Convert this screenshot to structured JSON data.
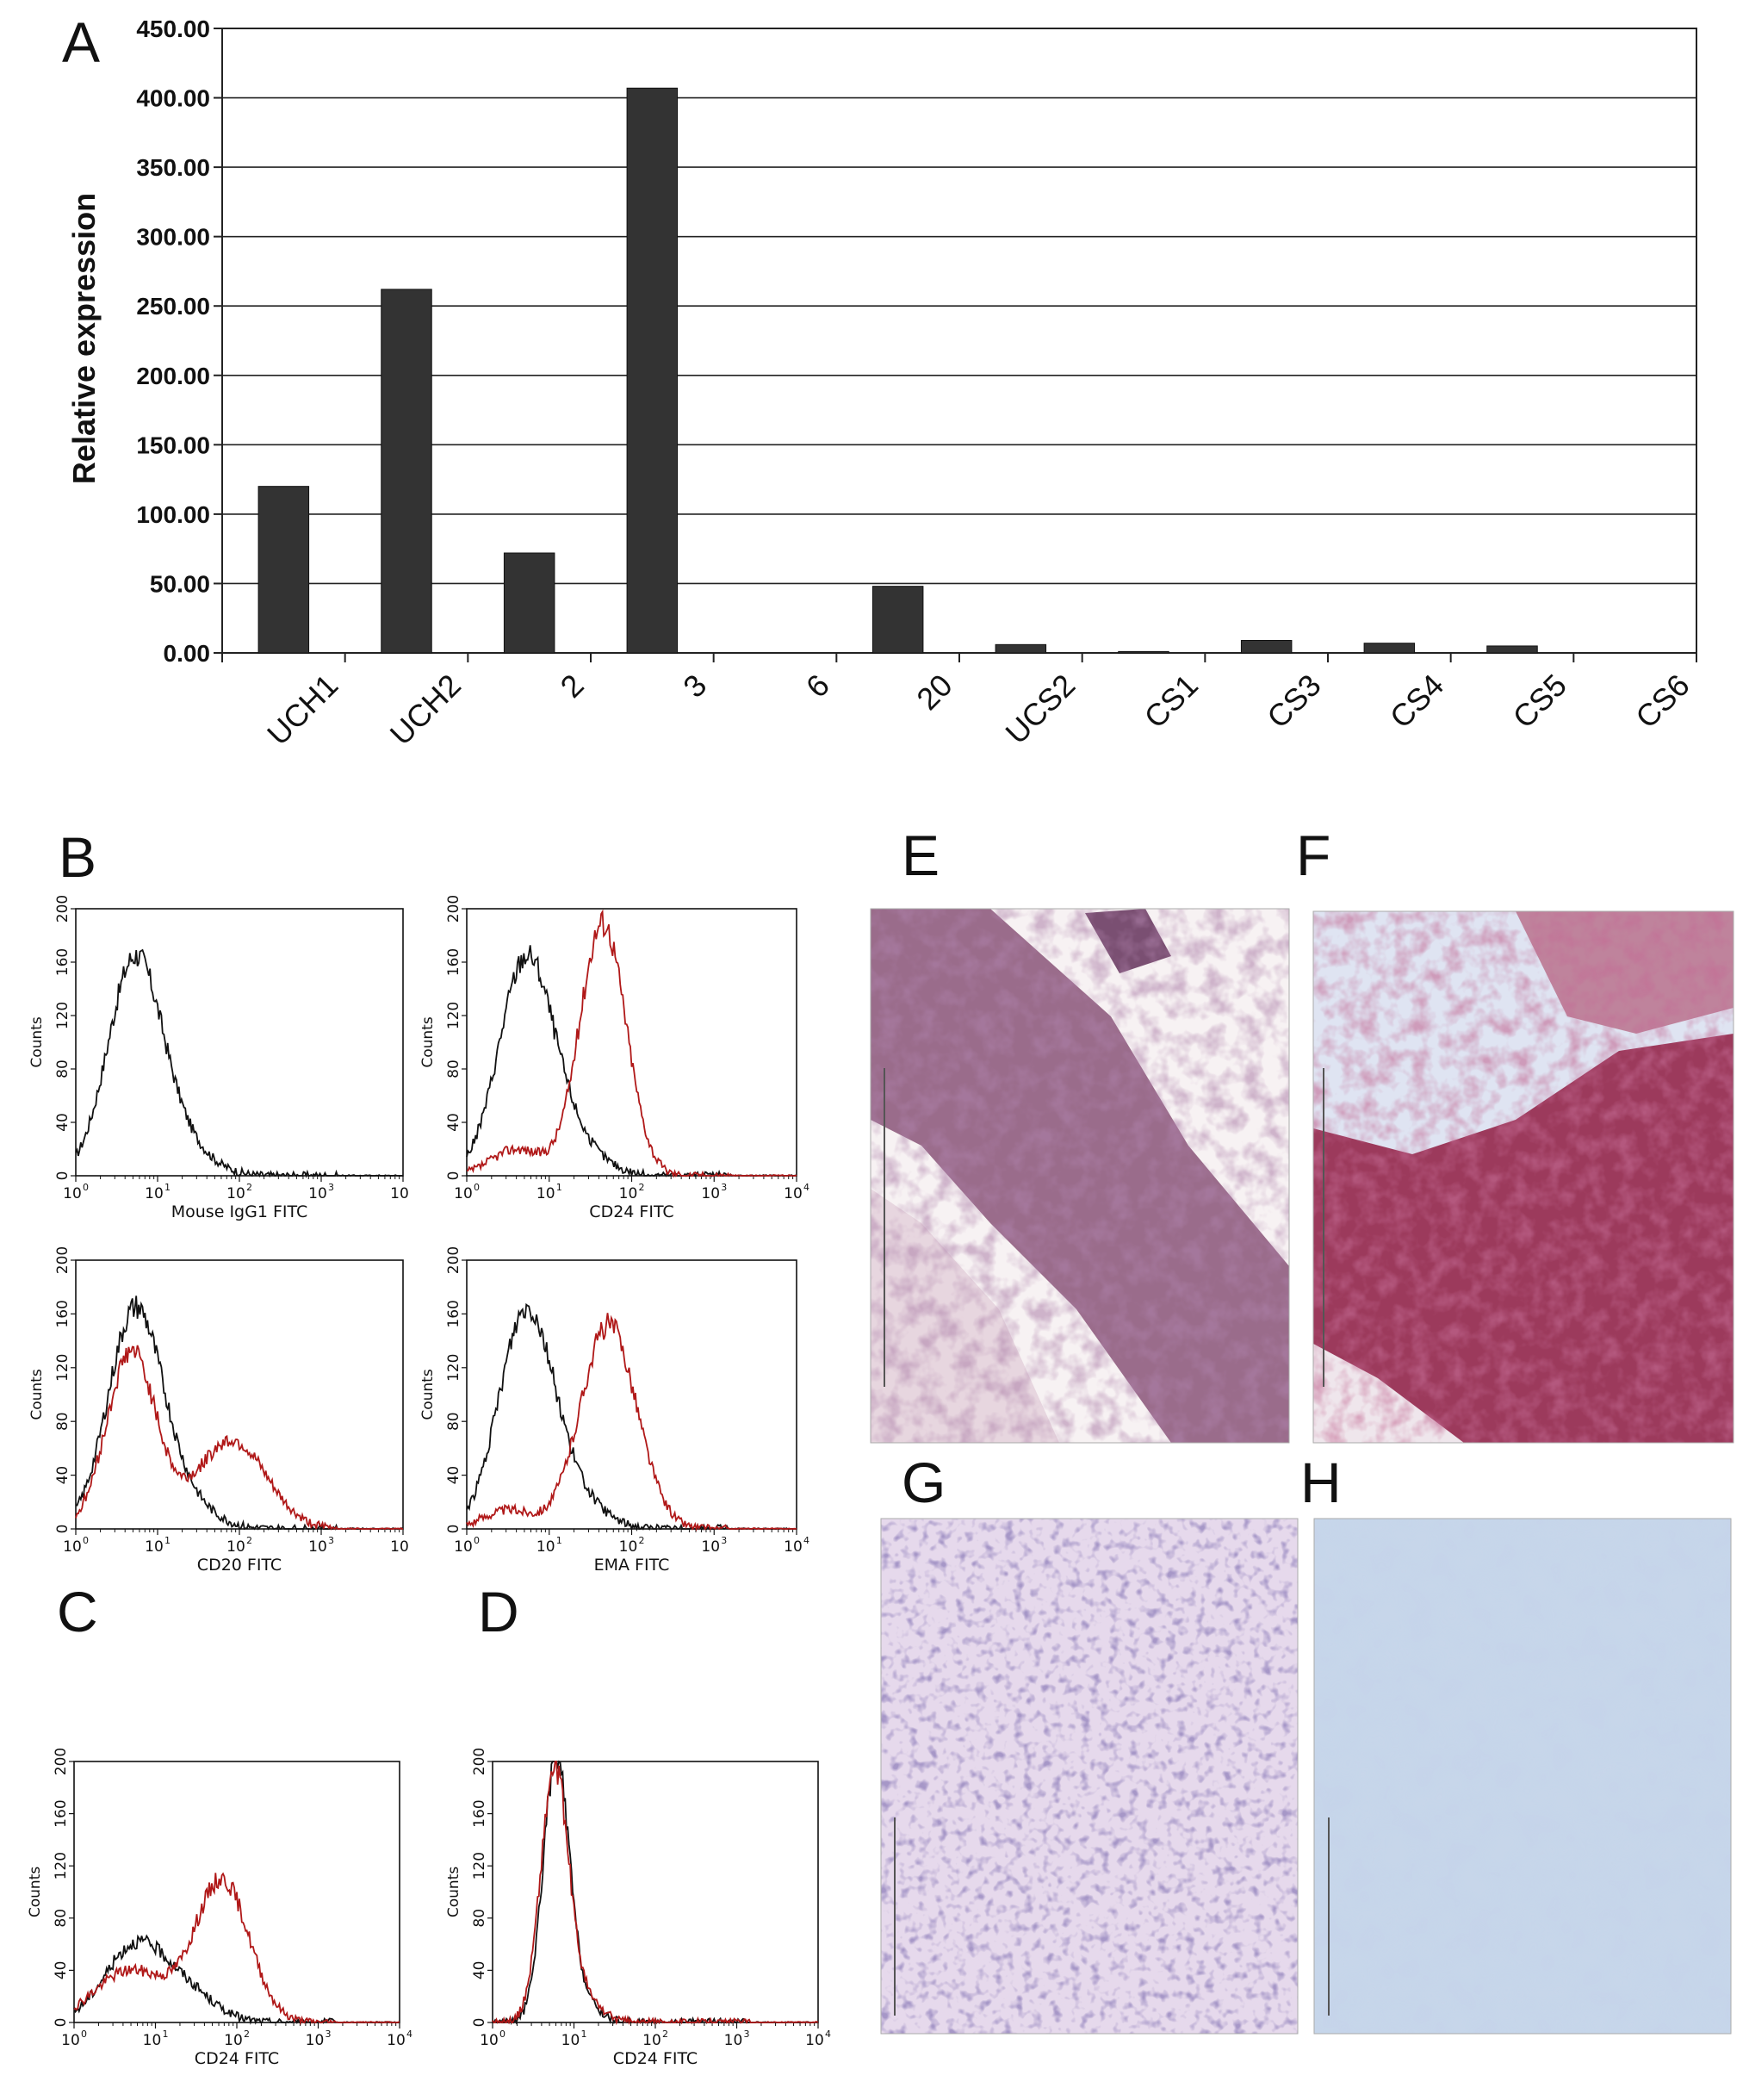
{
  "panel_letters": {
    "a": "A",
    "b": "B",
    "c": "C",
    "d": "D",
    "e": "E",
    "f": "F",
    "g": "G",
    "h": "H"
  },
  "chart_data": [
    {
      "panel": "A",
      "type": "bar",
      "ylabel": "Relative expression",
      "categories": [
        "UCH1",
        "UCH2",
        "2",
        "3",
        "6",
        "20",
        "UCS2",
        "CS1",
        "CS3",
        "CS4",
        "CS5",
        "CS6"
      ],
      "values": [
        120,
        262,
        72,
        407,
        0,
        48,
        6,
        1,
        9,
        7,
        5,
        0
      ],
      "yticks": [
        "0.00",
        "50.00",
        "100.00",
        "150.00",
        "200.00",
        "250.00",
        "300.00",
        "350.00",
        "400.00",
        "450.00"
      ],
      "ylim": [
        0,
        450
      ],
      "grid": true,
      "bar_color": "#333333"
    },
    {
      "panel": "B",
      "type": "line",
      "subplots": [
        {
          "xlabel": "Mouse IgG1 FITC",
          "last_tick_exp": ""
        },
        {
          "xlabel": "CD24 FITC",
          "last_tick_exp": "4"
        },
        {
          "xlabel": "CD20 FITC",
          "last_tick_exp": ""
        },
        {
          "xlabel": "EMA FITC",
          "last_tick_exp": "4"
        }
      ]
    },
    {
      "panel": "C",
      "type": "line",
      "xlabel": "CD24 FITC"
    },
    {
      "panel": "D",
      "type": "line",
      "xlabel": "CD24 FITC"
    }
  ],
  "flow": {
    "ylabel": "Counts",
    "yticks": [
      "0",
      "40",
      "80",
      "120",
      "160",
      "200"
    ],
    "xtick_base": "10",
    "xtick_exps": [
      "0",
      "1",
      "2",
      "3",
      "4"
    ],
    "control_color": "#111111",
    "stain_color": "#b01818"
  }
}
